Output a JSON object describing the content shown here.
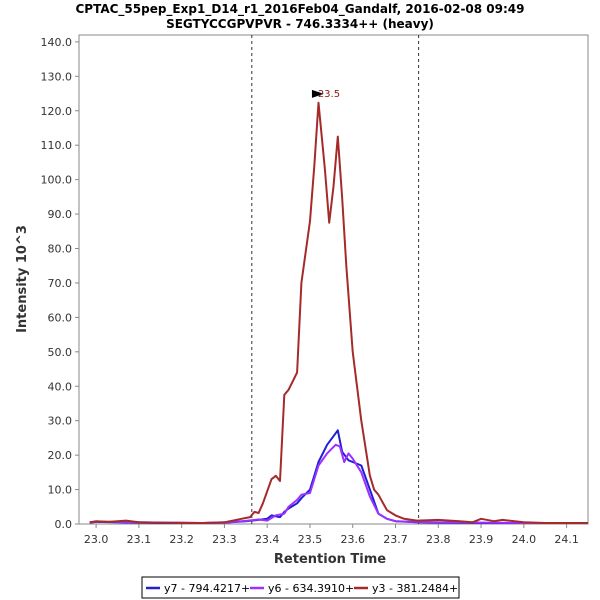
{
  "chart_data": {
    "type": "line",
    "title": "CPTAC_55pep_Exp1_D14_r1_2016Feb04_Gandalf, 2016-02-08 09:49",
    "subtitle": "SEGTYCCGPVPVR - 746.3334++ (heavy)",
    "xlabel": "Retention Time",
    "ylabel": "Intensity 10^3",
    "xlim": [
      22.96,
      24.15
    ],
    "ylim": [
      0,
      142
    ],
    "x_ticks": [
      "23.0",
      "23.1",
      "23.2",
      "23.3",
      "23.4",
      "23.5",
      "23.6",
      "23.7",
      "23.8",
      "23.9",
      "24.0",
      "24.1"
    ],
    "y_ticks": [
      "0.0",
      "10.0",
      "20.0",
      "30.0",
      "40.0",
      "50.0",
      "60.0",
      "70.0",
      "80.0",
      "90.0",
      "100.0",
      "110.0",
      "120.0",
      "130.0",
      "140.0"
    ],
    "integration_bounds": [
      23.364,
      23.754
    ],
    "peak_annotation": {
      "label": "23.5",
      "x": 23.535,
      "y": 122.3,
      "color": "#8b1a1a"
    },
    "series": [
      {
        "name": "y7 - 794.4217+",
        "color": "#1f1fd6",
        "x": [
          22.985,
          23.0,
          23.05,
          23.1,
          23.15,
          23.2,
          23.25,
          23.3,
          23.35,
          23.38,
          23.4,
          23.41,
          23.43,
          23.44,
          23.45,
          23.47,
          23.48,
          23.5,
          23.52,
          23.54,
          23.555,
          23.565,
          23.575,
          23.59,
          23.6,
          23.62,
          23.64,
          23.66,
          23.68,
          23.7,
          23.75,
          23.8,
          23.9,
          24.0,
          24.1,
          24.15
        ],
        "y": [
          0.4,
          0.6,
          0.5,
          0.4,
          0.3,
          0.3,
          0.3,
          0.4,
          0.8,
          1.2,
          1.5,
          2.5,
          2.0,
          3.5,
          4.5,
          6.0,
          7.5,
          10.0,
          18.0,
          23.0,
          25.5,
          27.2,
          21.0,
          18.5,
          18.0,
          17.0,
          10.0,
          3.0,
          1.5,
          0.8,
          0.5,
          0.4,
          0.3,
          0.3,
          0.3,
          0.3
        ]
      },
      {
        "name": "y6 - 634.3910+",
        "color": "#9b30ff",
        "x": [
          22.985,
          23.0,
          23.05,
          23.1,
          23.15,
          23.2,
          23.25,
          23.3,
          23.35,
          23.38,
          23.4,
          23.42,
          23.44,
          23.45,
          23.47,
          23.48,
          23.5,
          23.52,
          23.54,
          23.56,
          23.57,
          23.58,
          23.59,
          23.6,
          23.62,
          23.64,
          23.66,
          23.68,
          23.7,
          23.75,
          23.8,
          23.9,
          24.0,
          24.1,
          24.15
        ],
        "y": [
          0.5,
          0.7,
          0.6,
          0.5,
          0.4,
          0.4,
          0.3,
          0.4,
          0.9,
          1.3,
          1.0,
          2.5,
          3.0,
          5.0,
          7.0,
          8.5,
          9.0,
          17.0,
          20.5,
          23.0,
          22.5,
          18.0,
          20.5,
          19.0,
          15.0,
          8.0,
          3.0,
          1.5,
          0.8,
          0.6,
          0.5,
          0.4,
          0.3,
          0.3,
          0.3
        ]
      },
      {
        "name": "y3 - 381.2484+",
        "color": "#a52a2a",
        "x": [
          22.985,
          23.0,
          23.03,
          23.07,
          23.1,
          23.15,
          23.2,
          23.25,
          23.3,
          23.34,
          23.36,
          23.37,
          23.38,
          23.39,
          23.41,
          23.42,
          23.43,
          23.44,
          23.45,
          23.47,
          23.48,
          23.5,
          23.51,
          23.52,
          23.535,
          23.545,
          23.555,
          23.565,
          23.575,
          23.585,
          23.6,
          23.62,
          23.64,
          23.65,
          23.66,
          23.68,
          23.7,
          23.72,
          23.75,
          23.8,
          23.85,
          23.88,
          23.9,
          23.93,
          23.95,
          24.0,
          24.05,
          24.1,
          24.15
        ],
        "y": [
          0.5,
          0.8,
          0.6,
          1.0,
          0.5,
          0.4,
          0.3,
          0.3,
          0.5,
          1.5,
          2.0,
          3.5,
          3.2,
          6.0,
          13.0,
          14.0,
          12.5,
          37.5,
          39.0,
          44.0,
          70.0,
          88.0,
          104.0,
          122.3,
          103.0,
          87.5,
          98.0,
          112.5,
          95.0,
          75.0,
          50.0,
          30.0,
          14.0,
          10.0,
          8.5,
          4.0,
          2.5,
          1.5,
          1.0,
          1.2,
          0.8,
          0.5,
          1.5,
          0.8,
          1.2,
          0.5,
          0.3,
          0.3,
          0.3
        ]
      }
    ],
    "legend": {
      "placement": "bottom-center"
    }
  }
}
